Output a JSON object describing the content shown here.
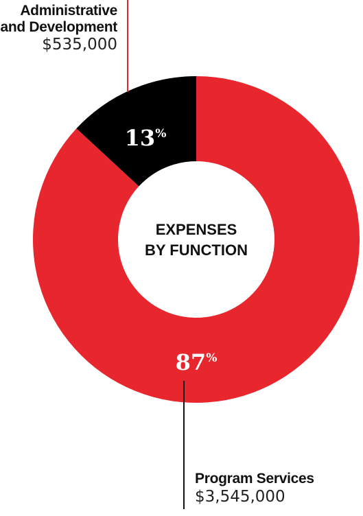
{
  "chart_data": {
    "type": "pie",
    "title": "EXPENSES BY FUNCTION",
    "title_lines": [
      "EXPENSES",
      "BY FUNCTION"
    ],
    "slices": [
      {
        "label_lines": [
          "Administrative",
          "and Development"
        ],
        "amount": "$535,000",
        "value": 535000,
        "percent_number": "13",
        "percent_sign": "%",
        "percent": 13,
        "color": "#000000"
      },
      {
        "label_lines": [
          "Program Services"
        ],
        "amount": "$3,545,000",
        "value": 3545000,
        "percent_number": "87",
        "percent_sign": "%",
        "percent": 87,
        "color": "#e8262d"
      }
    ],
    "donut": true,
    "legend": "none"
  }
}
